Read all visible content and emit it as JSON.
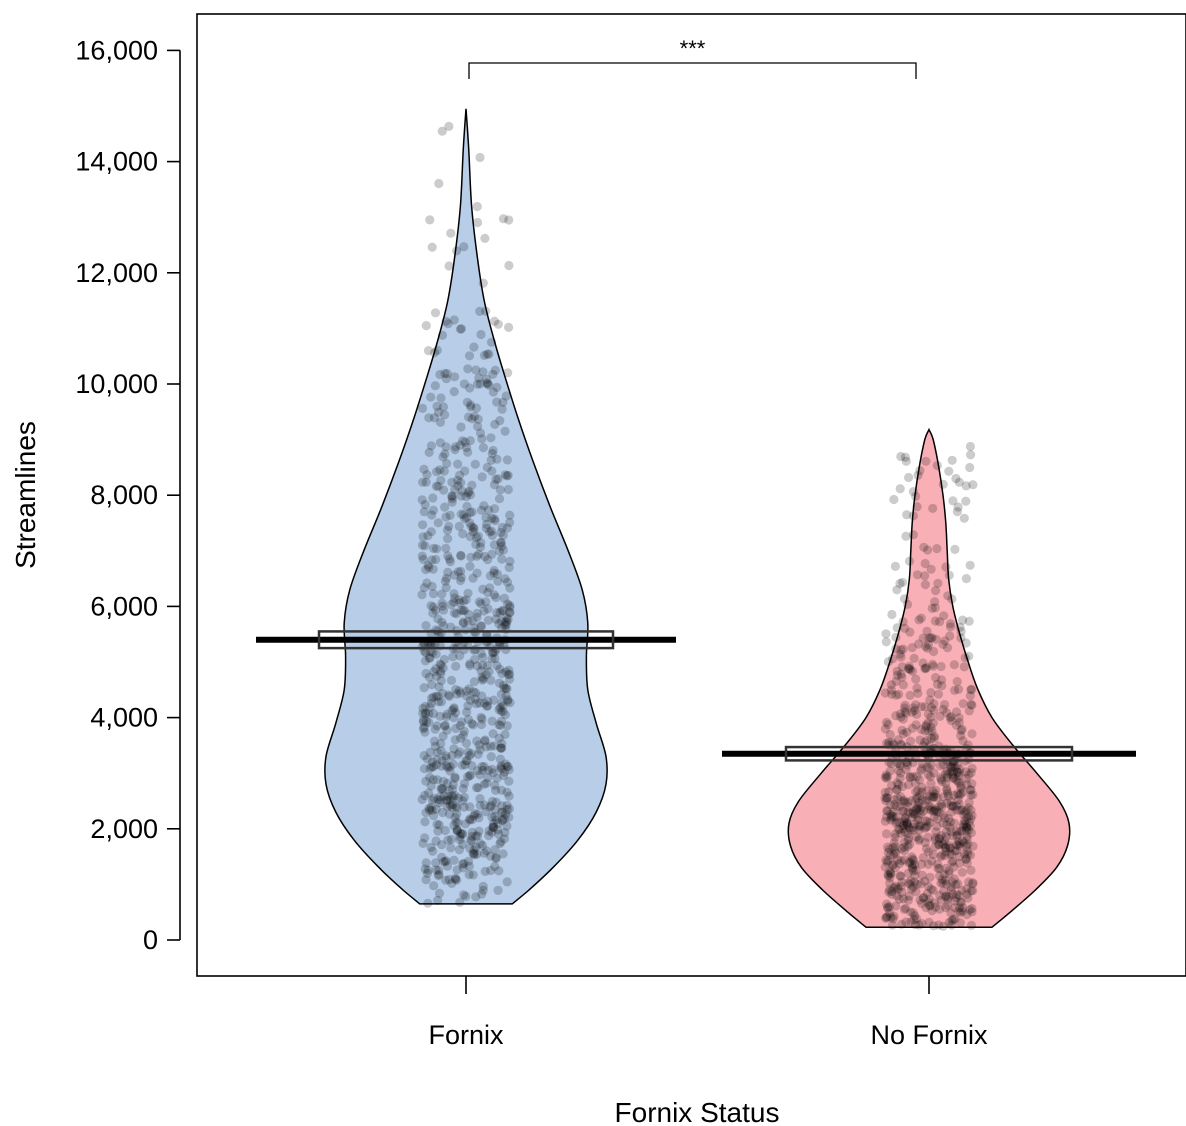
{
  "chart_data": {
    "type": "violin",
    "xlabel": "Fornix Status",
    "ylabel": "Streamlines",
    "ylim": [
      -650,
      16650
    ],
    "yticks": [
      0,
      2000,
      4000,
      6000,
      8000,
      10000,
      12000,
      14000,
      16000
    ],
    "ytick_labels": [
      "0",
      "2,000",
      "4,000",
      "6,000",
      "8,000",
      "10,000",
      "12,000",
      "14,000",
      "16,000"
    ],
    "categories": [
      "Fornix",
      "No Fornix"
    ],
    "significance": {
      "label": "***",
      "between": [
        "Fornix",
        "No Fornix"
      ]
    },
    "series": [
      {
        "name": "Fornix",
        "color": "#b7cde8",
        "mean": 5400,
        "ci": [
          5250,
          5550
        ],
        "min": 650,
        "max": 14950,
        "density": [
          [
            650,
            0.33
          ],
          [
            900,
            0.45
          ],
          [
            1300,
            0.62
          ],
          [
            1800,
            0.8
          ],
          [
            2300,
            0.93
          ],
          [
            2800,
            1.0
          ],
          [
            3300,
            1.0
          ],
          [
            3900,
            0.93
          ],
          [
            4500,
            0.87
          ],
          [
            5100,
            0.86
          ],
          [
            5700,
            0.87
          ],
          [
            6300,
            0.83
          ],
          [
            7000,
            0.73
          ],
          [
            7800,
            0.6
          ],
          [
            8600,
            0.48
          ],
          [
            9400,
            0.37
          ],
          [
            10200,
            0.27
          ],
          [
            10800,
            0.2
          ],
          [
            11500,
            0.13
          ],
          [
            12300,
            0.08
          ],
          [
            13200,
            0.04
          ],
          [
            14200,
            0.02
          ],
          [
            14950,
            0.0
          ]
        ]
      },
      {
        "name": "No Fornix",
        "color": "#f8b0b6",
        "mean": 3350,
        "ci": [
          3230,
          3470
        ],
        "min": 230,
        "max": 9180,
        "density": [
          [
            230,
            0.45
          ],
          [
            500,
            0.58
          ],
          [
            900,
            0.76
          ],
          [
            1300,
            0.91
          ],
          [
            1700,
            0.99
          ],
          [
            2100,
            1.0
          ],
          [
            2500,
            0.93
          ],
          [
            3000,
            0.77
          ],
          [
            3500,
            0.6
          ],
          [
            4000,
            0.45
          ],
          [
            4500,
            0.35
          ],
          [
            5000,
            0.28
          ],
          [
            5500,
            0.22
          ],
          [
            6000,
            0.17
          ],
          [
            6500,
            0.14
          ],
          [
            7000,
            0.13
          ],
          [
            7500,
            0.12
          ],
          [
            8000,
            0.1
          ],
          [
            8500,
            0.07
          ],
          [
            9000,
            0.03
          ],
          [
            9180,
            0.0
          ]
        ]
      }
    ]
  }
}
